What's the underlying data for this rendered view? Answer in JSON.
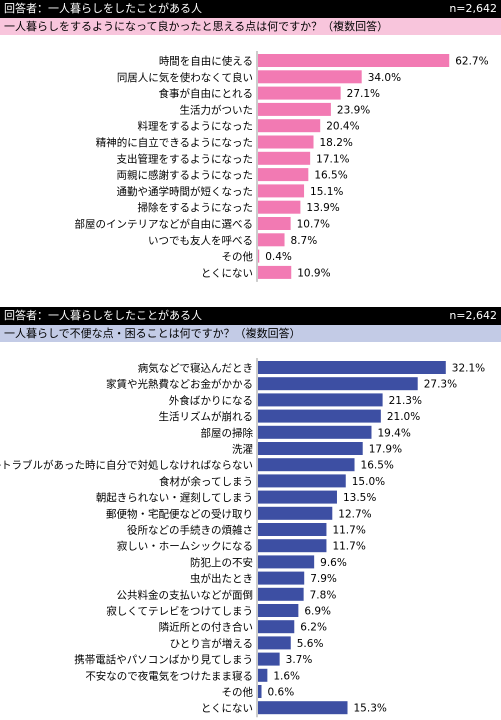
{
  "chart_data": [
    {
      "type": "bar",
      "orientation": "horizontal",
      "respondents_label": "回答者：一人暮らしをしたことがある人",
      "n_label": "n=2,642",
      "title": "一人暮らしをするようになって良かったと思える点は何ですか？（複数回答）",
      "categories": [
        "時間を自由に使える",
        "同居人に気を使わなくて良い",
        "食事が自由にとれる",
        "生活力がついた",
        "料理をするようになった",
        "精神的に自立できるようになった",
        "支出管理をするようになった",
        "両親に感謝するようになった",
        "通勤や通学時間が短くなった",
        "掃除をするようになった",
        "部屋のインテリアなどが自由に選べる",
        "いつでも友人を呼べる",
        "その他",
        "とくにない"
      ],
      "values": [
        62.7,
        34.0,
        27.1,
        23.9,
        20.4,
        18.2,
        17.1,
        16.5,
        15.1,
        13.9,
        10.7,
        8.7,
        0.4,
        10.9
      ],
      "value_labels": [
        "62.7%",
        "34.0%",
        "27.1%",
        "23.9%",
        "20.4%",
        "18.2%",
        "17.1%",
        "16.5%",
        "15.1%",
        "13.9%",
        "10.7%",
        "8.7%",
        "0.4%",
        "10.9%"
      ],
      "color": "#f27ab3"
    },
    {
      "type": "bar",
      "orientation": "horizontal",
      "respondents_label": "回答者：一人暮らしをしたことがある人",
      "n_label": "n=2,642",
      "title": "一人暮らしで不便な点・困ることは何ですか？（複数回答）",
      "categories": [
        "病気などで寝込んだとき",
        "家賃や光熱費などお金がかかる",
        "外食ばかりになる",
        "生活リズムが崩れる",
        "部屋の掃除",
        "洗濯",
        "何かトラブルがあった時に自分で対処しなければならない",
        "食材が余ってしまう",
        "朝起きられない・遅刻してしまう",
        "郵便物・宅配便などの受け取り",
        "役所などの手続きの煩雑さ",
        "寂しい・ホームシックになる",
        "防犯上の不安",
        "虫が出たとき",
        "公共料金の支払いなどが面倒",
        "寂しくてテレビをつけてしまう",
        "隣近所との付き合い",
        "ひとり言が増える",
        "携帯電話やパソコンばかり見てしまう",
        "不安なので夜電気をつけたまま寝る",
        "その他",
        "とくにない"
      ],
      "values": [
        32.1,
        27.3,
        21.3,
        21.0,
        19.4,
        17.9,
        16.5,
        15.0,
        13.5,
        12.7,
        11.7,
        11.7,
        9.6,
        7.9,
        7.8,
        6.9,
        6.2,
        5.6,
        3.7,
        1.6,
        0.6,
        15.3
      ],
      "value_labels": [
        "32.1%",
        "27.3%",
        "21.3%",
        "21.0%",
        "19.4%",
        "17.9%",
        "16.5%",
        "15.0%",
        "13.5%",
        "12.7%",
        "11.7%",
        "11.7%",
        "9.6%",
        "7.9%",
        "7.8%",
        "6.9%",
        "6.2%",
        "5.6%",
        "3.7%",
        "1.6%",
        "0.6%",
        "15.3%"
      ],
      "color": "#3d4fa3"
    }
  ]
}
